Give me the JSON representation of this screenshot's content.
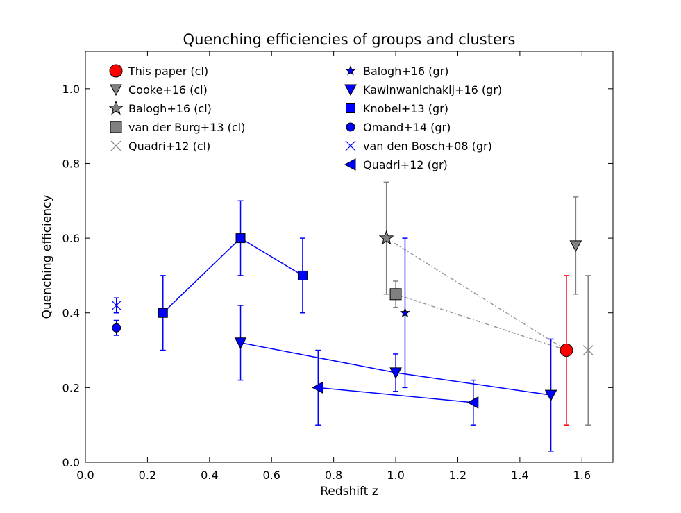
{
  "chart_data": {
    "type": "scatter",
    "title": "Quenching efficiencies of groups and clusters",
    "xlabel": "Redshift z",
    "ylabel": "Quenching efficiency",
    "xlim": [
      0.0,
      1.7
    ],
    "ylim": [
      0.0,
      1.1
    ],
    "xticks": [
      "0.0",
      "0.2",
      "0.4",
      "0.6",
      "0.8",
      "1.0",
      "1.2",
      "1.4",
      "1.6"
    ],
    "yticks": [
      "0.0",
      "0.2",
      "0.4",
      "0.6",
      "0.8",
      "1.0"
    ],
    "colors": {
      "blue": "#0000ff",
      "red": "#ff0000",
      "gray": "#808080",
      "dashdot": "#999999"
    },
    "series": [
      {
        "name": "This paper (cl)",
        "marker": "circle-large",
        "color": "#ff0000",
        "connect": false,
        "points": [
          {
            "x": 1.55,
            "y": 0.3,
            "lo": 0.1,
            "hi": 0.5
          }
        ]
      },
      {
        "name": "Cooke+16 (cl)",
        "marker": "triangle-down",
        "color": "#808080",
        "connect": false,
        "points": [
          {
            "x": 1.58,
            "y": 0.58,
            "lo": 0.45,
            "hi": 0.71
          }
        ]
      },
      {
        "name": "Balogh+16 (cl)",
        "marker": "star-large",
        "color": "#808080",
        "connect": false,
        "points": [
          {
            "x": 0.97,
            "y": 0.6,
            "lo": 0.45,
            "hi": 0.75
          }
        ]
      },
      {
        "name": "van der Burg+13 (cl)",
        "marker": "square-large",
        "color": "#808080",
        "connect": false,
        "points": [
          {
            "x": 1.0,
            "y": 0.45,
            "lo": 0.415,
            "hi": 0.485
          }
        ]
      },
      {
        "name": "Quadri+12 (cl)",
        "marker": "x",
        "color": "#808080",
        "connect": false,
        "points": [
          {
            "x": 1.62,
            "y": 0.3,
            "lo": 0.1,
            "hi": 0.5
          }
        ]
      },
      {
        "name": "Balogh+16 (gr)",
        "marker": "star-small",
        "color": "#0000ff",
        "connect": false,
        "points": [
          {
            "x": 1.03,
            "y": 0.4,
            "lo": 0.2,
            "hi": 0.6
          }
        ]
      },
      {
        "name": "Kawinwanichakij+16 (gr)",
        "marker": "triangle-down",
        "color": "#0000ff",
        "connect": true,
        "points": [
          {
            "x": 0.5,
            "y": 0.32,
            "lo": 0.22,
            "hi": 0.42
          },
          {
            "x": 1.0,
            "y": 0.24,
            "lo": 0.19,
            "hi": 0.29
          },
          {
            "x": 1.5,
            "y": 0.18,
            "lo": 0.03,
            "hi": 0.33
          }
        ]
      },
      {
        "name": "Knobel+13 (gr)",
        "marker": "square",
        "color": "#0000ff",
        "connect": true,
        "points": [
          {
            "x": 0.25,
            "y": 0.4,
            "lo": 0.3,
            "hi": 0.5
          },
          {
            "x": 0.5,
            "y": 0.6,
            "lo": 0.5,
            "hi": 0.7
          },
          {
            "x": 0.7,
            "y": 0.5,
            "lo": 0.4,
            "hi": 0.6
          }
        ]
      },
      {
        "name": "Omand+14 (gr)",
        "marker": "circle",
        "color": "#0000ff",
        "connect": false,
        "points": [
          {
            "x": 0.1,
            "y": 0.36,
            "lo": 0.34,
            "hi": 0.38
          }
        ]
      },
      {
        "name": "van den Bosch+08 (gr)",
        "marker": "x",
        "color": "#0000ff",
        "connect": false,
        "points": [
          {
            "x": 0.1,
            "y": 0.42,
            "lo": 0.4,
            "hi": 0.44
          }
        ]
      },
      {
        "name": "Quadri+12 (gr)",
        "marker": "triangle-left",
        "color": "#0000ff",
        "connect": true,
        "points": [
          {
            "x": 0.75,
            "y": 0.2,
            "lo": 0.1,
            "hi": 0.3
          },
          {
            "x": 1.25,
            "y": 0.16,
            "lo": 0.1,
            "hi": 0.22
          }
        ]
      }
    ],
    "dashdot_links": [
      {
        "from": [
          0.97,
          0.6
        ],
        "to": [
          1.55,
          0.3
        ]
      },
      {
        "from": [
          1.0,
          0.45
        ],
        "to": [
          1.55,
          0.3
        ]
      }
    ],
    "legend": {
      "position": "top-left",
      "columns": [
        [
          "This paper (cl)",
          "Cooke+16 (cl)",
          "Balogh+16 (cl)",
          "van der Burg+13 (cl)",
          "Quadri+12 (cl)"
        ],
        [
          "Balogh+16 (gr)",
          "Kawinwanichakij+16 (gr)",
          "Knobel+13 (gr)",
          "Omand+14 (gr)",
          "van den Bosch+08 (gr)",
          "Quadri+12 (gr)"
        ]
      ]
    }
  }
}
